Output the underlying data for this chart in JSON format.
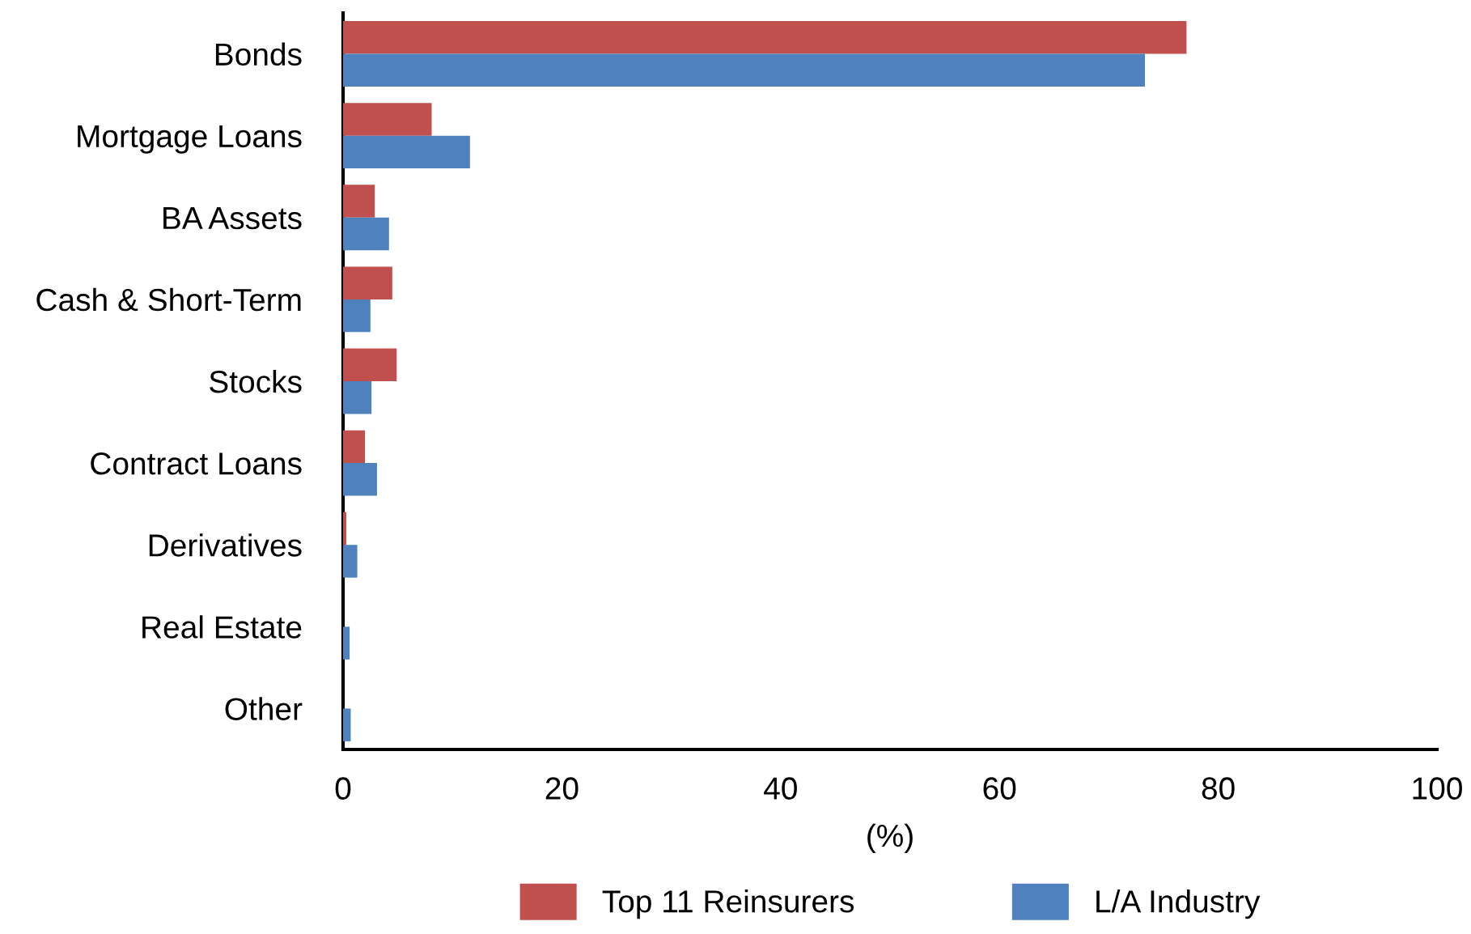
{
  "chart_data": {
    "type": "bar",
    "orientation": "horizontal",
    "xlabel": "(%)",
    "categories": [
      "Bonds",
      "Mortgage Loans",
      "BA Assets",
      "Cash & Short-Term",
      "Stocks",
      "Contract Loans",
      "Derivatives",
      "Real Estate",
      "Other"
    ],
    "series": [
      {
        "name": "Top 11 Reinsurers",
        "color": "#c0504d",
        "values": [
          77.1,
          8.1,
          2.9,
          4.5,
          4.9,
          2.0,
          0.3,
          0,
          0
        ]
      },
      {
        "name": "L/A Industry",
        "color": "#4f81bd",
        "values": [
          73.3,
          11.6,
          4.2,
          2.5,
          2.6,
          3.1,
          1.3,
          0.6,
          0.7
        ]
      }
    ],
    "xlim": [
      0,
      100
    ],
    "xticks": [
      0,
      20,
      40,
      60,
      80,
      100
    ],
    "grid": false,
    "legend": "bottom"
  }
}
